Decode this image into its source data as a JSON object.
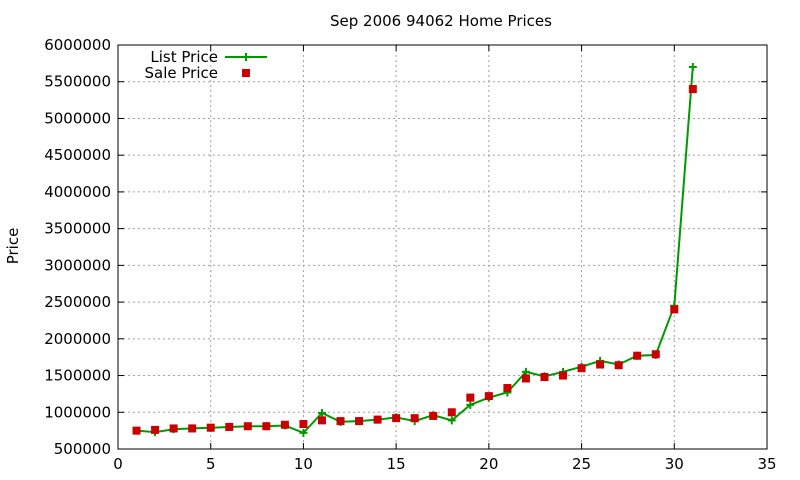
{
  "chart_data": {
    "type": "line",
    "title": "Sep 2006 94062 Home Prices",
    "xlabel": "",
    "ylabel": "Price",
    "xlim": [
      0,
      35
    ],
    "ylim": [
      500000,
      6000000
    ],
    "x_ticks": [
      0,
      5,
      10,
      15,
      20,
      25,
      30,
      35
    ],
    "y_ticks": [
      500000,
      1000000,
      1500000,
      2000000,
      2500000,
      3000000,
      3500000,
      4000000,
      4500000,
      5000000,
      5500000,
      6000000
    ],
    "grid": true,
    "legend_position": "top-left",
    "series": [
      {
        "name": "List Price",
        "style": "line-with-plus-markers",
        "color": "#009900",
        "x": [
          1,
          2,
          3,
          4,
          5,
          6,
          7,
          8,
          9,
          10,
          11,
          12,
          13,
          14,
          15,
          16,
          17,
          18,
          19,
          20,
          21,
          22,
          23,
          24,
          25,
          26,
          27,
          28,
          29,
          30,
          31
        ],
        "y": [
          750000,
          730000,
          770000,
          780000,
          790000,
          800000,
          810000,
          810000,
          820000,
          720000,
          990000,
          870000,
          880000,
          900000,
          930000,
          880000,
          960000,
          890000,
          1100000,
          1200000,
          1270000,
          1550000,
          1490000,
          1550000,
          1620000,
          1700000,
          1650000,
          1770000,
          1780000,
          2450000,
          5700000
        ]
      },
      {
        "name": "Sale Price",
        "style": "square-markers",
        "color": "#cc0000",
        "x": [
          1,
          2,
          3,
          4,
          5,
          6,
          7,
          8,
          9,
          10,
          11,
          12,
          13,
          14,
          15,
          16,
          17,
          18,
          19,
          20,
          21,
          22,
          23,
          24,
          25,
          26,
          27,
          28,
          29,
          30,
          31
        ],
        "y": [
          750000,
          760000,
          780000,
          780000,
          790000,
          800000,
          810000,
          810000,
          830000,
          840000,
          890000,
          880000,
          880000,
          900000,
          920000,
          920000,
          950000,
          1000000,
          1200000,
          1220000,
          1330000,
          1460000,
          1480000,
          1500000,
          1600000,
          1650000,
          1640000,
          1770000,
          1790000,
          2400000,
          5400000
        ]
      }
    ]
  }
}
